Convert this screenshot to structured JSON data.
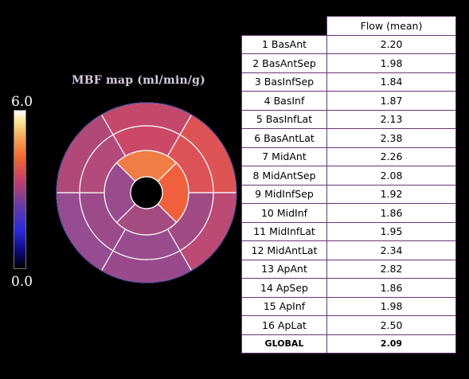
{
  "title": "MBF map (ml/min/g)",
  "colorbar": {
    "max_label": "6.0",
    "min_label": "0.0",
    "range": [
      0.0,
      6.0
    ]
  },
  "table": {
    "header": "Flow (mean)",
    "rows": [
      {
        "segment": "1 BasAnt",
        "value": "2.20"
      },
      {
        "segment": "2 BasAntSep",
        "value": "1.98"
      },
      {
        "segment": "3 BasInfSep",
        "value": "1.84"
      },
      {
        "segment": "4 BasInf",
        "value": "1.87"
      },
      {
        "segment": "5 BasInfLat",
        "value": "2.13"
      },
      {
        "segment": "6 BasAntLat",
        "value": "2.38"
      },
      {
        "segment": "7 MidAnt",
        "value": "2.26"
      },
      {
        "segment": "8 MidAntSep",
        "value": "2.08"
      },
      {
        "segment": "9 MidInfSep",
        "value": "1.92"
      },
      {
        "segment": "10 MidInf",
        "value": "1.86"
      },
      {
        "segment": "11 MidInfLat",
        "value": "1.95"
      },
      {
        "segment": "12 MidAntLat",
        "value": "2.34"
      },
      {
        "segment": "13 ApAnt",
        "value": "2.82"
      },
      {
        "segment": "14 ApSep",
        "value": "1.86"
      },
      {
        "segment": "15 ApInf",
        "value": "1.98"
      },
      {
        "segment": "16 ApLat",
        "value": "2.50"
      }
    ],
    "global": {
      "segment": "GLOBAL",
      "value": "2.09"
    }
  },
  "segment_colors": {
    "1": "#c4486a",
    "2": "#b04878",
    "3": "#964c90",
    "4": "#9a4a8c",
    "5": "#bc4a72",
    "6": "#de5454",
    "7": "#cc4868",
    "8": "#b24a7c",
    "9": "#9c4a8a",
    "10": "#984c8e",
    "11": "#a24a84",
    "12": "#dc5256",
    "13": "#f07c46",
    "14": "#984c8e",
    "15": "#a44c82",
    "16": "#f0603c"
  }
}
